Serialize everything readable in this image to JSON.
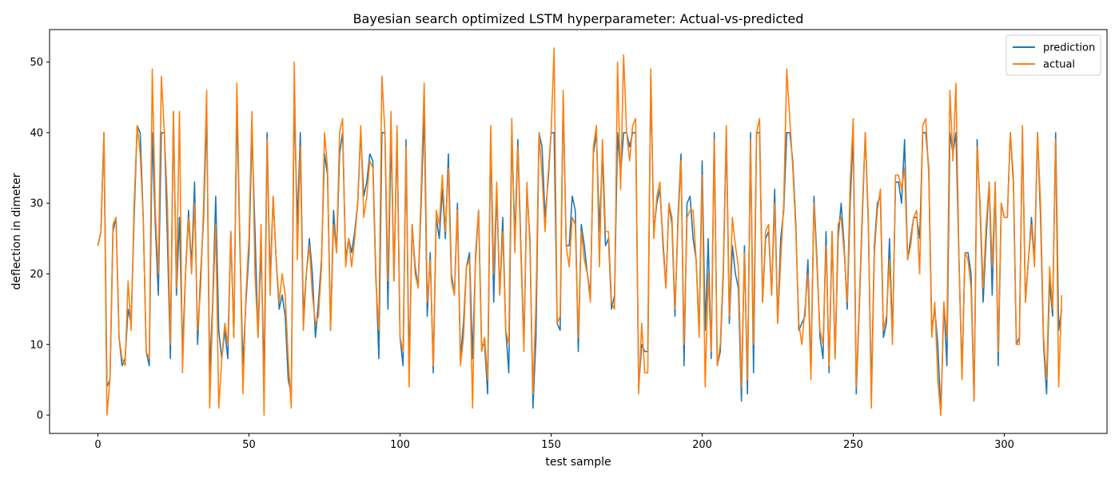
{
  "chart_data": {
    "type": "line",
    "title": "Bayesian search optimized LSTM hyperparameter: Actual-vs-predicted",
    "xlabel": "test sample",
    "ylabel": "deflection in dimeter",
    "xlim": [
      -16,
      334
    ],
    "ylim": [
      -2.6,
      54.6
    ],
    "xticks": [
      0,
      50,
      100,
      150,
      200,
      250,
      300
    ],
    "yticks": [
      0,
      10,
      20,
      30,
      40,
      50
    ],
    "grid": false,
    "legend": "upper-right",
    "series": [
      {
        "name": "prediction",
        "color": "#1f77b4",
        "values": [
          24,
          26,
          40,
          4,
          5,
          26,
          28,
          11,
          7,
          8,
          15,
          13,
          28,
          41,
          40,
          28,
          9,
          7,
          40,
          27,
          17,
          40,
          40,
          25,
          8,
          43,
          17,
          28,
          9,
          20,
          29,
          21,
          33,
          10,
          20,
          28,
          43,
          6,
          16,
          31,
          12,
          8,
          12,
          8,
          26,
          11,
          44,
          24,
          7,
          16,
          23,
          40,
          26,
          11,
          24,
          5,
          40,
          19,
          31,
          22,
          15,
          17,
          14,
          5,
          3,
          45,
          27,
          40,
          14,
          20,
          25,
          20,
          11,
          16,
          22,
          37,
          34,
          12,
          29,
          23,
          37,
          40,
          22,
          25,
          23,
          26,
          30,
          40,
          31,
          33,
          37,
          36,
          20,
          8,
          40,
          40,
          15,
          40,
          19,
          40,
          11,
          7,
          39,
          6,
          27,
          21,
          18,
          30,
          43,
          14,
          23,
          6,
          28,
          25,
          32,
          25,
          37,
          20,
          17,
          30,
          8,
          13,
          21,
          23,
          8,
          22,
          29,
          10,
          10,
          3,
          40,
          16,
          32,
          17,
          28,
          12,
          6,
          40,
          25,
          39,
          24,
          10,
          32,
          25,
          1,
          11,
          40,
          38,
          28,
          33,
          40,
          40,
          13,
          12,
          45,
          24,
          24,
          31,
          29,
          9,
          27,
          24,
          20,
          17,
          37,
          40,
          26,
          37,
          24,
          25,
          15,
          17,
          40,
          34,
          40,
          40,
          38,
          40,
          40,
          4,
          10,
          9,
          9,
          48,
          26,
          30,
          32,
          25,
          18,
          30,
          27,
          14,
          28,
          37,
          7,
          30,
          31,
          25,
          22,
          12,
          36,
          12,
          25,
          8,
          40,
          7,
          9,
          20,
          40,
          13,
          24,
          20,
          18,
          2,
          24,
          3,
          40,
          6,
          40,
          40,
          16,
          25,
          26,
          17,
          32,
          13,
          25,
          29,
          40,
          40,
          36,
          27,
          12,
          13,
          14,
          22,
          6,
          31,
          22,
          11,
          8,
          26,
          6,
          26,
          8,
          25,
          30,
          24,
          15,
          30,
          40,
          3,
          15,
          28,
          40,
          27,
          3,
          24,
          30,
          31,
          11,
          13,
          25,
          11,
          33,
          33,
          30,
          39,
          22,
          25,
          28,
          28,
          25,
          40,
          40,
          35,
          12,
          15,
          10,
          0,
          16,
          7,
          40,
          37,
          40,
          22,
          6,
          23,
          23,
          20,
          2,
          39,
          29,
          16,
          25,
          33,
          17,
          33,
          7,
          30,
          28,
          28,
          40,
          33,
          10,
          11,
          40,
          16,
          22,
          28,
          22,
          40,
          28,
          10,
          3,
          19,
          14,
          40,
          12,
          15
        ]
      },
      {
        "name": "actual",
        "color": "#ff7f0e",
        "values": [
          24,
          26,
          40,
          0,
          5,
          27,
          28,
          11,
          8,
          7,
          19,
          12,
          30,
          41,
          37,
          28,
          9,
          8,
          49,
          29,
          20,
          48,
          40,
          30,
          10,
          43,
          18,
          43,
          6,
          20,
          28,
          20,
          30,
          12,
          18,
          30,
          46,
          1,
          15,
          27,
          1,
          8,
          13,
          10,
          26,
          11,
          47,
          25,
          3,
          17,
          25,
          43,
          20,
          11,
          27,
          0,
          39,
          17,
          31,
          22,
          16,
          20,
          17,
          8,
          1,
          50,
          22,
          38,
          12,
          20,
          24,
          17,
          13,
          14,
          21,
          40,
          35,
          12,
          27,
          23,
          40,
          42,
          21,
          25,
          21,
          25,
          30,
          41,
          28,
          31,
          36,
          35,
          19,
          12,
          48,
          40,
          19,
          43,
          19,
          41,
          11,
          9,
          38,
          4,
          27,
          20,
          18,
          32,
          47,
          16,
          22,
          7,
          29,
          27,
          34,
          26,
          35,
          19,
          17,
          29,
          7,
          11,
          21,
          22,
          1,
          23,
          29,
          9,
          11,
          5,
          41,
          20,
          33,
          17,
          26,
          12,
          10,
          42,
          23,
          38,
          23,
          9,
          33,
          24,
          3,
          16,
          40,
          34,
          26,
          34,
          40,
          52,
          13,
          14,
          46,
          24,
          21,
          28,
          27,
          11,
          26,
          22,
          20,
          16,
          38,
          41,
          21,
          39,
          26,
          26,
          16,
          15,
          50,
          32,
          51,
          40,
          36,
          41,
          42,
          3,
          13,
          6,
          6,
          49,
          25,
          31,
          33,
          24,
          18,
          30,
          28,
          15,
          27,
          36,
          10,
          28,
          29,
          29,
          22,
          11,
          34,
          4,
          20,
          9,
          39,
          7,
          10,
          21,
          41,
          14,
          28,
          24,
          21,
          4,
          23,
          5,
          39,
          10,
          40,
          42,
          16,
          26,
          27,
          17,
          30,
          13,
          22,
          30,
          49,
          42,
          35,
          26,
          13,
          10,
          15,
          20,
          5,
          30,
          21,
          12,
          10,
          24,
          7,
          26,
          8,
          27,
          28,
          23,
          16,
          33,
          42,
          4,
          16,
          29,
          40,
          28,
          1,
          23,
          29,
          32,
          12,
          14,
          22,
          10,
          34,
          34,
          32,
          35,
          22,
          24,
          28,
          29,
          20,
          41,
          42,
          34,
          11,
          16,
          5,
          0,
          16,
          11,
          46,
          36,
          47,
          22,
          5,
          23,
          22,
          18,
          2,
          38,
          30,
          18,
          27,
          33,
          21,
          33,
          9,
          30,
          28,
          28,
          40,
          34,
          10,
          10,
          41,
          16,
          22,
          27,
          21,
          40,
          30,
          11,
          5,
          21,
          15,
          39,
          4,
          17
        ]
      }
    ]
  }
}
